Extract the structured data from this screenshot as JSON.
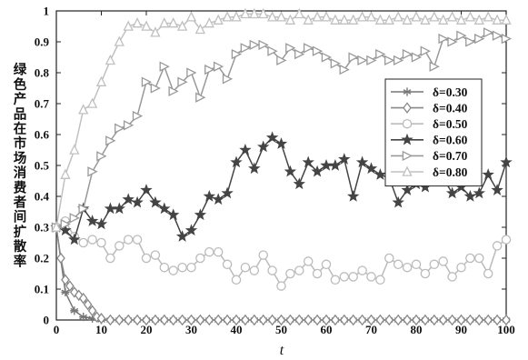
{
  "chart_data": {
    "type": "line",
    "xlabel": "t",
    "ylabel": "绿色产品在市场消费者间扩散率",
    "xlim": [
      0,
      100
    ],
    "ylim": [
      0,
      1
    ],
    "xticks": [
      0,
      10,
      20,
      30,
      40,
      50,
      60,
      70,
      80,
      90,
      100
    ],
    "yticks": [
      0,
      0.1,
      0.2,
      0.3,
      0.4,
      0.5,
      0.6,
      0.7,
      0.8,
      0.9,
      1
    ],
    "grid": false,
    "legend_position": "right",
    "series": [
      {
        "name": "δ=0.30",
        "marker": "asterisk",
        "color": "#777777",
        "x": [
          0,
          2,
          4,
          6,
          8,
          10,
          12,
          14,
          16,
          18,
          20,
          22,
          24,
          26,
          28,
          30,
          32,
          34,
          36,
          38,
          40,
          42,
          44,
          46,
          48,
          50,
          52,
          54,
          56,
          58,
          60,
          62,
          64,
          66,
          68,
          70,
          72,
          74,
          76,
          78,
          80,
          82,
          84,
          86,
          88,
          90,
          92,
          94,
          96,
          98,
          100
        ],
        "y": [
          0.3,
          0.09,
          0.03,
          0.01,
          0.005,
          0,
          0,
          0,
          0,
          0,
          0,
          0,
          0,
          0,
          0,
          0,
          0,
          0,
          0,
          0,
          0,
          0,
          0,
          0,
          0,
          0,
          0,
          0,
          0,
          0,
          0,
          0,
          0,
          0,
          0,
          0,
          0,
          0,
          0,
          0,
          0,
          0,
          0,
          0,
          0,
          0,
          0,
          0,
          0,
          0,
          0
        ]
      },
      {
        "name": "δ=0.40",
        "marker": "diamond",
        "color": "#888888",
        "x": [
          0,
          1,
          2,
          3,
          4,
          5,
          6,
          7,
          8,
          9,
          10,
          12,
          14,
          16,
          18,
          20,
          22,
          24,
          26,
          28,
          30,
          32,
          34,
          36,
          38,
          40,
          42,
          44,
          46,
          48,
          50,
          52,
          54,
          56,
          58,
          60,
          62,
          64,
          66,
          68,
          70,
          72,
          74,
          76,
          78,
          80,
          82,
          84,
          86,
          88,
          90,
          92,
          94,
          96,
          98,
          100
        ],
        "y": [
          0.3,
          0.2,
          0.13,
          0.11,
          0.09,
          0.08,
          0.07,
          0.05,
          0.03,
          0.01,
          0.005,
          0,
          0,
          0,
          0,
          0,
          0,
          0,
          0,
          0,
          0,
          0,
          0,
          0,
          0,
          0,
          0,
          0,
          0,
          0,
          0,
          0,
          0,
          0,
          0,
          0,
          0,
          0,
          0,
          0,
          0,
          0,
          0,
          0,
          0,
          0,
          0,
          0,
          0,
          0,
          0,
          0,
          0,
          0,
          0,
          0
        ]
      },
      {
        "name": "δ=0.50",
        "marker": "circle",
        "color": "#bbbbbb",
        "x": [
          0,
          2,
          4,
          6,
          8,
          10,
          12,
          14,
          16,
          18,
          20,
          22,
          24,
          26,
          28,
          30,
          32,
          34,
          36,
          38,
          40,
          42,
          44,
          46,
          48,
          50,
          52,
          54,
          56,
          58,
          60,
          62,
          64,
          66,
          68,
          70,
          72,
          74,
          76,
          78,
          80,
          82,
          84,
          86,
          88,
          90,
          92,
          94,
          96,
          98,
          100
        ],
        "y": [
          0.3,
          0.32,
          0.27,
          0.25,
          0.26,
          0.25,
          0.2,
          0.24,
          0.26,
          0.26,
          0.2,
          0.21,
          0.17,
          0.16,
          0.17,
          0.17,
          0.2,
          0.22,
          0.22,
          0.18,
          0.13,
          0.17,
          0.16,
          0.21,
          0.16,
          0.11,
          0.15,
          0.16,
          0.19,
          0.15,
          0.18,
          0.13,
          0.14,
          0.14,
          0.16,
          0.14,
          0.13,
          0.2,
          0.18,
          0.17,
          0.18,
          0.15,
          0.18,
          0.19,
          0.14,
          0.17,
          0.2,
          0.2,
          0.15,
          0.24,
          0.26
        ]
      },
      {
        "name": "δ=0.60",
        "marker": "star",
        "color": "#444444",
        "x": [
          0,
          2,
          4,
          6,
          8,
          10,
          12,
          14,
          16,
          18,
          20,
          22,
          24,
          26,
          28,
          30,
          32,
          34,
          36,
          38,
          40,
          42,
          44,
          46,
          48,
          50,
          52,
          54,
          56,
          58,
          60,
          62,
          64,
          66,
          68,
          70,
          72,
          74,
          76,
          78,
          80,
          82,
          84,
          86,
          88,
          90,
          92,
          94,
          96,
          98,
          100
        ],
        "y": [
          0.3,
          0.29,
          0.26,
          0.36,
          0.32,
          0.31,
          0.36,
          0.36,
          0.39,
          0.38,
          0.42,
          0.38,
          0.36,
          0.34,
          0.27,
          0.29,
          0.34,
          0.4,
          0.39,
          0.41,
          0.51,
          0.55,
          0.49,
          0.56,
          0.59,
          0.57,
          0.48,
          0.44,
          0.51,
          0.48,
          0.5,
          0.5,
          0.52,
          0.4,
          0.51,
          0.49,
          0.47,
          0.46,
          0.38,
          0.42,
          0.44,
          0.43,
          0.47,
          0.46,
          0.41,
          0.43,
          0.4,
          0.41,
          0.47,
          0.42,
          0.51
        ]
      },
      {
        "name": "δ=0.70",
        "marker": "triangle-right",
        "color": "#999999",
        "x": [
          0,
          2,
          4,
          6,
          8,
          10,
          12,
          14,
          16,
          18,
          20,
          22,
          24,
          26,
          28,
          30,
          32,
          34,
          36,
          38,
          40,
          42,
          44,
          46,
          48,
          50,
          52,
          54,
          56,
          58,
          60,
          62,
          64,
          66,
          68,
          70,
          72,
          74,
          76,
          78,
          80,
          82,
          84,
          86,
          88,
          90,
          92,
          94,
          96,
          98,
          100
        ],
        "y": [
          0.3,
          0.31,
          0.33,
          0.36,
          0.48,
          0.53,
          0.58,
          0.62,
          0.63,
          0.66,
          0.77,
          0.75,
          0.82,
          0.74,
          0.77,
          0.8,
          0.72,
          0.81,
          0.82,
          0.78,
          0.86,
          0.88,
          0.89,
          0.89,
          0.87,
          0.84,
          0.88,
          0.86,
          0.88,
          0.87,
          0.85,
          0.83,
          0.81,
          0.85,
          0.84,
          0.84,
          0.86,
          0.84,
          0.84,
          0.86,
          0.85,
          0.87,
          0.82,
          0.91,
          0.9,
          0.92,
          0.9,
          0.91,
          0.93,
          0.92,
          0.91
        ]
      },
      {
        "name": "δ=0.80",
        "marker": "triangle-up",
        "color": "#c0c0c0",
        "x": [
          0,
          2,
          4,
          6,
          8,
          10,
          12,
          14,
          16,
          18,
          20,
          22,
          24,
          26,
          28,
          30,
          32,
          34,
          36,
          38,
          40,
          42,
          44,
          46,
          48,
          50,
          52,
          54,
          56,
          58,
          60,
          62,
          64,
          66,
          68,
          70,
          72,
          74,
          76,
          78,
          80,
          82,
          84,
          86,
          88,
          90,
          92,
          94,
          96,
          98,
          100
        ],
        "y": [
          0.3,
          0.47,
          0.55,
          0.68,
          0.7,
          0.77,
          0.84,
          0.9,
          0.95,
          0.96,
          0.95,
          0.93,
          0.96,
          0.96,
          0.95,
          0.98,
          0.94,
          0.96,
          0.97,
          0.98,
          0.98,
          0.99,
          0.99,
          0.99,
          0.98,
          0.98,
          0.97,
          0.99,
          0.97,
          0.98,
          0.98,
          0.97,
          0.97,
          0.97,
          0.98,
          0.98,
          0.97,
          0.97,
          0.98,
          0.97,
          0.98,
          0.97,
          0.98,
          0.97,
          0.98,
          0.97,
          0.98,
          0.97,
          0.98,
          0.97,
          0.97
        ]
      }
    ]
  }
}
